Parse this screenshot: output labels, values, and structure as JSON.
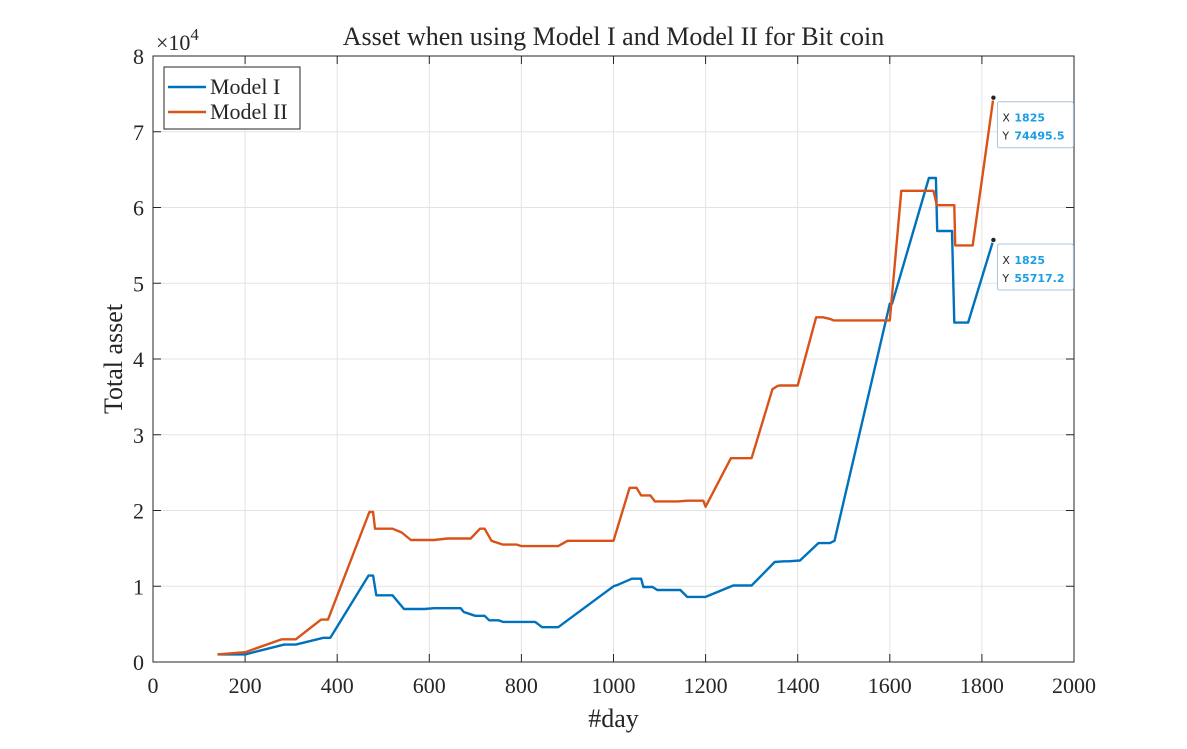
{
  "chart_data": {
    "type": "line",
    "title": "Asset when using Model I and Model II for Bit coin",
    "xlabel": "#day",
    "ylabel": "Total asset",
    "xlim": [
      0,
      2000
    ],
    "ylim": [
      0,
      80000
    ],
    "xticks": [
      0,
      200,
      400,
      600,
      800,
      1000,
      1200,
      1400,
      1600,
      1800,
      2000
    ],
    "yticks": [
      0,
      10000,
      20000,
      30000,
      40000,
      50000,
      60000,
      70000,
      80000
    ],
    "x_tick_labels": [
      "0",
      "200",
      "400",
      "600",
      "800",
      "1000",
      "1200",
      "1400",
      "1600",
      "1800",
      "2000"
    ],
    "y_tick_labels": [
      "0",
      "1",
      "2",
      "3",
      "4",
      "5",
      "6",
      "7",
      "8"
    ],
    "y_exponent_label": {
      "base": "×10",
      "exponent": "4"
    },
    "grid": true,
    "legend_position": "top-left",
    "series": [
      {
        "name": "Model I",
        "color": "#0072bd",
        "x": [
          140,
          200,
          285,
          310,
          370,
          385,
          468,
          478,
          485,
          520,
          545,
          560,
          590,
          610,
          640,
          668,
          675,
          690,
          700,
          720,
          730,
          750,
          760,
          800,
          830,
          845,
          880,
          1000,
          1010,
          1040,
          1060,
          1065,
          1085,
          1095,
          1130,
          1145,
          1160,
          1200,
          1260,
          1300,
          1350,
          1370,
          1380,
          1405,
          1445,
          1470,
          1480,
          1600,
          1605,
          1685,
          1700,
          1703,
          1735,
          1740,
          1770,
          1825
        ],
        "y": [
          1000,
          1000,
          2300,
          2300,
          3200,
          3200,
          11400,
          11400,
          8800,
          8800,
          7000,
          7000,
          7000,
          7100,
          7100,
          7100,
          6600,
          6300,
          6100,
          6100,
          5500,
          5500,
          5300,
          5300,
          5300,
          4600,
          4600,
          10000,
          10200,
          11000,
          11000,
          9900,
          9900,
          9500,
          9500,
          9500,
          8600,
          8600,
          10100,
          10100,
          13200,
          13300,
          13300,
          13400,
          15700,
          15700,
          16000,
          47300,
          47300,
          63900,
          63900,
          56900,
          56900,
          44800,
          44800,
          55717.2
        ]
      },
      {
        "name": "Model II",
        "color": "#d95319",
        "x": [
          140,
          200,
          280,
          310,
          365,
          380,
          470,
          478,
          482,
          520,
          540,
          560,
          590,
          610,
          640,
          668,
          690,
          710,
          720,
          735,
          740,
          760,
          790,
          800,
          830,
          840,
          880,
          900,
          960,
          1000,
          1035,
          1050,
          1060,
          1080,
          1090,
          1130,
          1140,
          1160,
          1195,
          1200,
          1255,
          1300,
          1345,
          1355,
          1360,
          1370,
          1400,
          1440,
          1450,
          1455,
          1470,
          1478,
          1485,
          1550,
          1590,
          1600,
          1625,
          1660,
          1670,
          1695,
          1702,
          1712,
          1740,
          1742,
          1780,
          1825
        ],
        "y": [
          1000,
          1300,
          3000,
          3000,
          5600,
          5600,
          19800,
          19800,
          17600,
          17600,
          17100,
          16100,
          16100,
          16100,
          16300,
          16300,
          16300,
          17600,
          17600,
          16000,
          15900,
          15500,
          15500,
          15300,
          15300,
          15300,
          15300,
          16000,
          16000,
          16000,
          23000,
          23000,
          22000,
          22000,
          21200,
          21200,
          21200,
          21300,
          21300,
          20500,
          26900,
          26900,
          36000,
          36400,
          36500,
          36500,
          36500,
          45500,
          45500,
          45500,
          45300,
          45100,
          45100,
          45100,
          45100,
          45100,
          62200,
          62200,
          62200,
          62200,
          60300,
          60300,
          60300,
          55000,
          55000,
          74495.5
        ]
      }
    ],
    "datatips": [
      {
        "x_label": "X",
        "x_value": "1825",
        "y_label": "Y",
        "y_value": "74495.5",
        "x": 1825,
        "y": 74495.5
      },
      {
        "x_label": "X",
        "x_value": "1825",
        "y_label": "Y",
        "y_value": "55717.2",
        "x": 1825,
        "y": 55717.2
      }
    ]
  }
}
